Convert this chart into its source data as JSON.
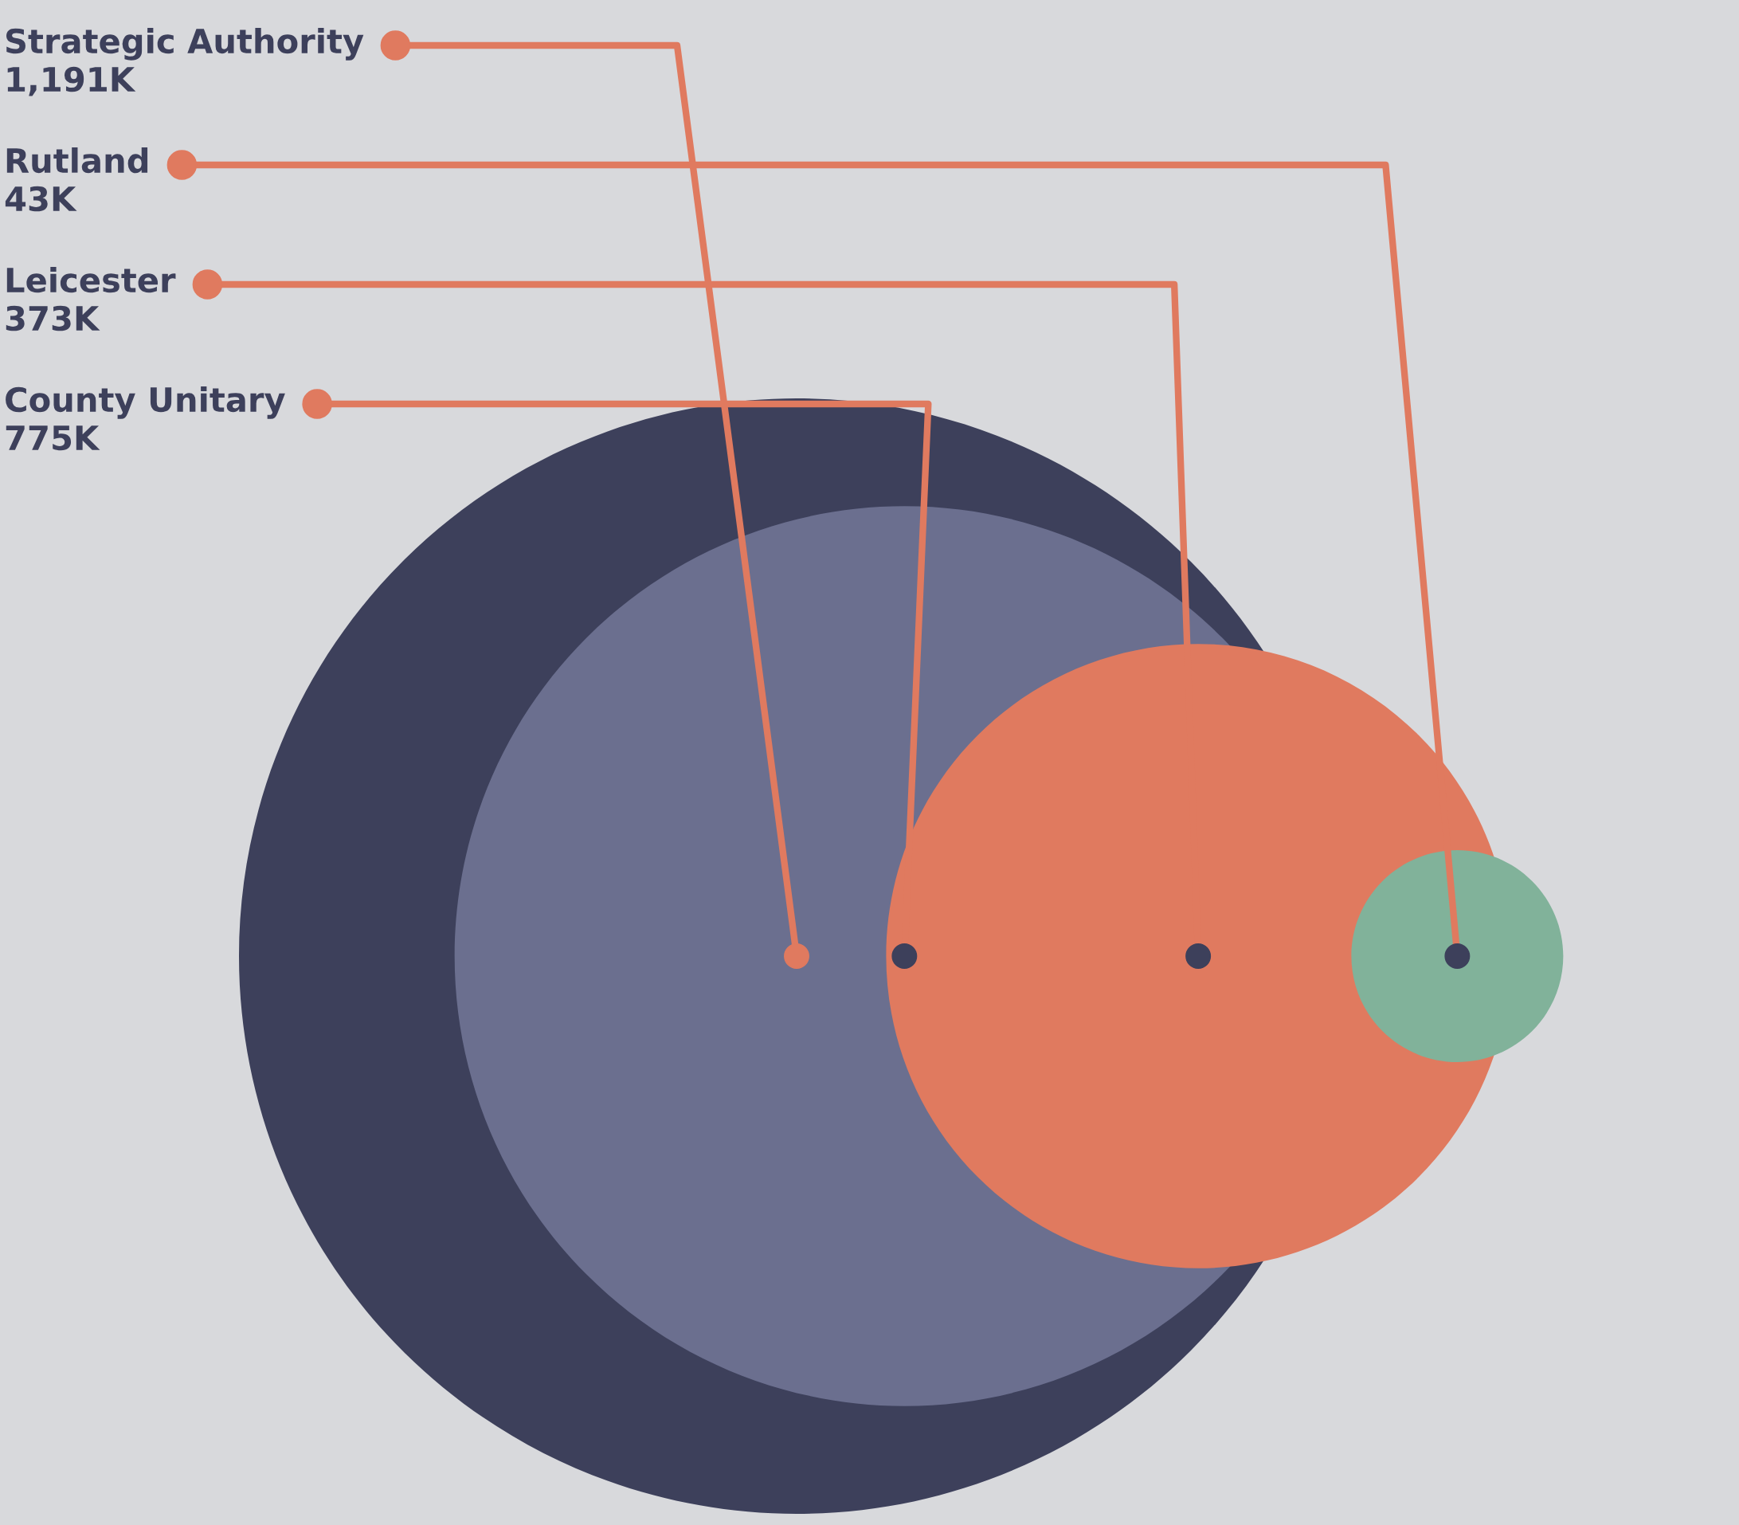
{
  "chart_data": {
    "type": "other",
    "categories": [
      "Strategic Authority",
      "Rutland",
      "Leicester",
      "County Unitary"
    ],
    "values": [
      1191,
      43,
      373,
      775
    ],
    "value_labels": [
      "1,191K",
      "43K",
      "373K",
      "775K"
    ],
    "colors": [
      "#3d405b",
      "#81b29a",
      "#e07a5f",
      "#6b6f8f"
    ]
  }
}
